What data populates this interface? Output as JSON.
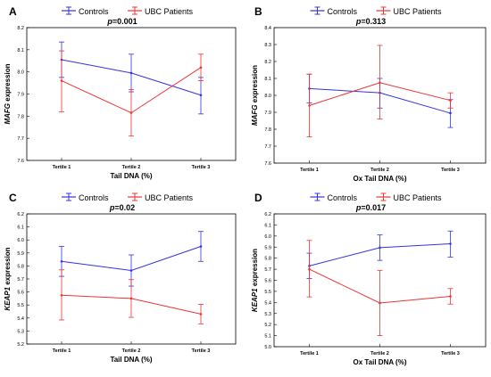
{
  "chart_data": [
    {
      "panel_label": "A",
      "type": "line",
      "legend": [
        "Controls",
        "UBC Patients"
      ],
      "pvalue": "p=0.001",
      "ylabel_gene": "MAFG",
      "ylabel_suffix": " expression",
      "xlabel": "Tail DNA (%)",
      "categories": [
        "Tertile 1",
        "Tertile 2",
        "Tertile 3"
      ],
      "ylim": [
        7.6,
        8.2
      ],
      "yticks": [
        "7.6",
        "7.7",
        "7.8",
        "7.9",
        "8.0",
        "8.1",
        "8.2"
      ],
      "series": [
        {
          "name": "Controls",
          "color": "#3333dd",
          "values": [
            8.055,
            7.995,
            7.895
          ],
          "lower": [
            7.975,
            7.91,
            7.81
          ],
          "upper": [
            8.135,
            8.08,
            7.975
          ]
        },
        {
          "name": "UBC Patients",
          "color": "#ee3333",
          "values": [
            7.96,
            7.815,
            8.02
          ],
          "lower": [
            7.82,
            7.71,
            7.96
          ],
          "upper": [
            8.095,
            7.92,
            8.08
          ]
        }
      ]
    },
    {
      "panel_label": "B",
      "type": "line",
      "legend": [
        "Controls",
        "UBC Patients"
      ],
      "pvalue": "p=0.313",
      "ylabel_gene": "MAFG",
      "ylabel_suffix": " expression",
      "xlabel": "Ox Tail DNA (%)",
      "categories": [
        "Tertile 1",
        "Tertile 2",
        "Tertile 3"
      ],
      "ylim": [
        7.6,
        8.4
      ],
      "yticks": [
        "7.6",
        "7.7",
        "7.8",
        "7.9",
        "8.0",
        "8.1",
        "8.2",
        "8.3",
        "8.4"
      ],
      "series": [
        {
          "name": "Controls",
          "color": "#3333dd",
          "values": [
            8.04,
            8.015,
            7.895
          ],
          "lower": [
            7.955,
            7.925,
            7.81
          ],
          "upper": [
            8.125,
            8.1,
            7.975
          ]
        },
        {
          "name": "UBC Patients",
          "color": "#ee3333",
          "values": [
            7.94,
            8.075,
            7.97
          ],
          "lower": [
            7.755,
            7.86,
            7.925
          ],
          "upper": [
            8.125,
            8.295,
            8.015
          ]
        }
      ]
    },
    {
      "panel_label": "C",
      "type": "line",
      "legend": [
        "Controls",
        "UBC Patients"
      ],
      "pvalue": "p=0.02",
      "ylabel_gene": "KEAP1",
      "ylabel_suffix": " expression",
      "xlabel": "Tail DNA (%)",
      "categories": [
        "Tertile 1",
        "Tertile 2",
        "Tertile 3"
      ],
      "ylim": [
        5.2,
        6.2
      ],
      "yticks": [
        "5.2",
        "5.3",
        "5.4",
        "5.5",
        "5.6",
        "5.7",
        "5.8",
        "5.9",
        "6.0",
        "6.1",
        "6.2"
      ],
      "series": [
        {
          "name": "Controls",
          "color": "#3333dd",
          "values": [
            5.835,
            5.765,
            5.95
          ],
          "lower": [
            5.72,
            5.645,
            5.835
          ],
          "upper": [
            5.95,
            5.885,
            6.065
          ]
        },
        {
          "name": "UBC Patients",
          "color": "#ee3333",
          "values": [
            5.575,
            5.55,
            5.43
          ],
          "lower": [
            5.385,
            5.405,
            5.355
          ],
          "upper": [
            5.77,
            5.695,
            5.505
          ]
        }
      ]
    },
    {
      "panel_label": "D",
      "type": "line",
      "legend": [
        "Controls",
        "UBC Patients"
      ],
      "pvalue": "p=0.017",
      "ylabel_gene": "KEAP1",
      "ylabel_suffix": " expression",
      "xlabel": "Ox Tail DNA (%)",
      "categories": [
        "Tertile 1",
        "Tertile 2",
        "Tertile 3"
      ],
      "ylim": [
        5.0,
        6.2
      ],
      "yticks": [
        "5.0",
        "5.1",
        "5.2",
        "5.3",
        "5.4",
        "5.5",
        "5.6",
        "5.7",
        "5.8",
        "5.9",
        "6.0",
        "6.1",
        "6.2"
      ],
      "series": [
        {
          "name": "Controls",
          "color": "#3333dd",
          "values": [
            5.73,
            5.895,
            5.93
          ],
          "lower": [
            5.615,
            5.78,
            5.81
          ],
          "upper": [
            5.845,
            6.01,
            6.045
          ]
        },
        {
          "name": "UBC Patients",
          "color": "#ee3333",
          "values": [
            5.7,
            5.395,
            5.455
          ],
          "lower": [
            5.45,
            5.1,
            5.385
          ],
          "upper": [
            5.96,
            5.69,
            5.525
          ]
        }
      ]
    }
  ]
}
